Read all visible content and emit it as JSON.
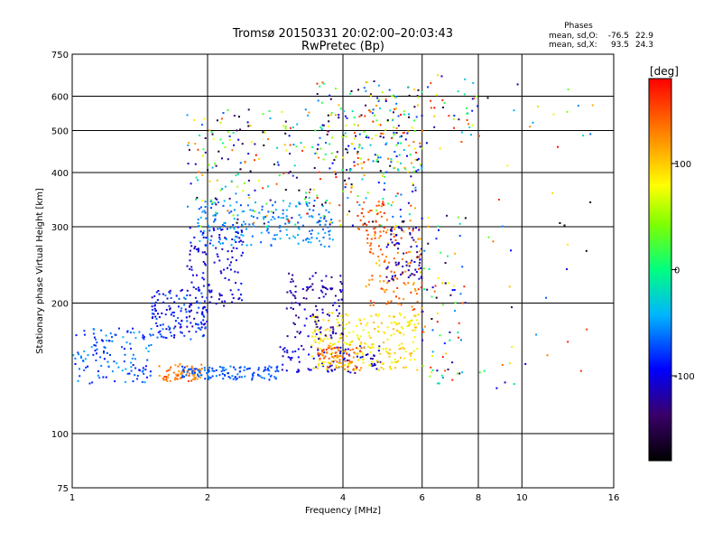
{
  "chart_data": {
    "type": "scatter",
    "title": "Tromsø 20150331 20:02:00–20:03:43",
    "subtitle": "RwPretec (Bp)",
    "xlabel": "Frequency [MHz]",
    "ylabel": "Stationary phase Virtual Height [km]",
    "x_scale": "log",
    "y_scale": "log",
    "xlim": [
      1,
      16
    ],
    "ylim": [
      75,
      750
    ],
    "x_ticks": [
      1,
      2,
      4,
      6,
      8,
      10,
      16
    ],
    "y_ticks": [
      75,
      100,
      200,
      300,
      400,
      500,
      600,
      750
    ],
    "grid": true,
    "phase_stats": {
      "heading": "Phases",
      "o_label": "mean, sd,O:",
      "o_mean": -76.5,
      "o_sd": 22.9,
      "x_label": "mean, sd,X:",
      "x_mean": 93.5,
      "x_sd": 24.3
    },
    "colorbar": {
      "label": "[deg]",
      "range": [
        -180,
        180
      ],
      "ticks": [
        100,
        0,
        -100
      ]
    },
    "clusters": [
      {
        "fmin": 1.0,
        "fmax": 1.5,
        "hmin": 130,
        "hmax": 175,
        "pmin": -95,
        "pmax": -40,
        "n": 130
      },
      {
        "fmin": 1.5,
        "fmax": 2.0,
        "hmin": 165,
        "hmax": 215,
        "pmin": -120,
        "pmax": -60,
        "n": 150
      },
      {
        "fmin": 1.55,
        "fmax": 1.95,
        "hmin": 132,
        "hmax": 145,
        "pmin": 110,
        "pmax": 160,
        "n": 70
      },
      {
        "fmin": 1.75,
        "fmax": 2.9,
        "hmin": 133,
        "hmax": 143,
        "pmin": -85,
        "pmax": -55,
        "n": 120
      },
      {
        "fmin": 2.9,
        "fmax": 4.9,
        "hmin": 138,
        "hmax": 160,
        "pmin": -125,
        "pmax": -85,
        "n": 90
      },
      {
        "fmin": 3.4,
        "fmax": 5.9,
        "hmin": 140,
        "hmax": 190,
        "pmin": 70,
        "pmax": 110,
        "n": 260
      },
      {
        "fmin": 3.5,
        "fmax": 4.4,
        "hmin": 140,
        "hmax": 160,
        "pmin": 120,
        "pmax": 165,
        "n": 60
      },
      {
        "fmin": 3.0,
        "fmax": 4.0,
        "hmin": 165,
        "hmax": 235,
        "pmin": -135,
        "pmax": -100,
        "n": 110
      },
      {
        "fmin": 4.5,
        "fmax": 6.0,
        "hmin": 190,
        "hmax": 300,
        "pmin": 100,
        "pmax": 160,
        "n": 120
      },
      {
        "fmin": 1.9,
        "fmax": 3.8,
        "hmin": 270,
        "hmax": 345,
        "pmin": -75,
        "pmax": -35,
        "n": 200
      },
      {
        "fmin": 1.8,
        "fmax": 2.4,
        "hmin": 195,
        "hmax": 300,
        "pmin": -120,
        "pmax": -85,
        "n": 120
      },
      {
        "fmin": 1.8,
        "fmax": 6.0,
        "hmin": 300,
        "hmax": 560,
        "pmin": -180,
        "pmax": 180,
        "n": 330
      },
      {
        "fmin": 3.5,
        "fmax": 6.0,
        "hmin": 400,
        "hmax": 650,
        "pmin": -180,
        "pmax": 180,
        "n": 170
      },
      {
        "fmin": 4.3,
        "fmax": 5.0,
        "hmin": 290,
        "hmax": 345,
        "pmin": 130,
        "pmax": 170,
        "n": 40
      },
      {
        "fmin": 5.0,
        "fmax": 6.0,
        "hmin": 225,
        "hmax": 300,
        "pmin": -140,
        "pmax": -95,
        "n": 70
      },
      {
        "fmin": 6.0,
        "fmax": 7.5,
        "hmin": 130,
        "hmax": 320,
        "pmin": -180,
        "pmax": 180,
        "n": 80
      },
      {
        "fmin": 6.0,
        "fmax": 8.0,
        "hmin": 450,
        "hmax": 680,
        "pmin": -180,
        "pmax": 180,
        "n": 40
      },
      {
        "fmin": 8.0,
        "fmax": 14.5,
        "hmin": 125,
        "hmax": 650,
        "pmin": -180,
        "pmax": 180,
        "n": 45
      }
    ]
  }
}
